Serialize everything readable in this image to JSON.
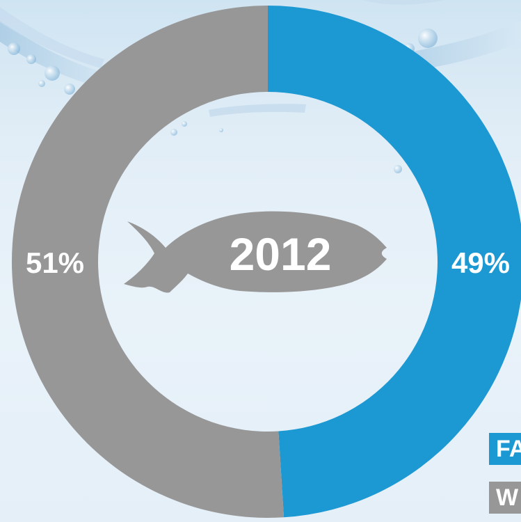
{
  "chart_data": {
    "type": "pie",
    "title": "2012",
    "slices": [
      {
        "label": "49%",
        "value": 49,
        "color": "#1c98d2"
      },
      {
        "label": "51%",
        "value": 51,
        "color": "#979797"
      }
    ],
    "legend": {
      "placement": "bottom-right",
      "entries": [
        {
          "label": "FA",
          "color": "#1c98d2"
        },
        {
          "label": "W",
          "color": "#979797"
        }
      ]
    }
  },
  "colors": {
    "background": "#e6f0f8",
    "fish": "#979797",
    "label_text": "#ffffff"
  },
  "icons": {
    "center": "fish-icon",
    "background": "water-splash-icon"
  }
}
